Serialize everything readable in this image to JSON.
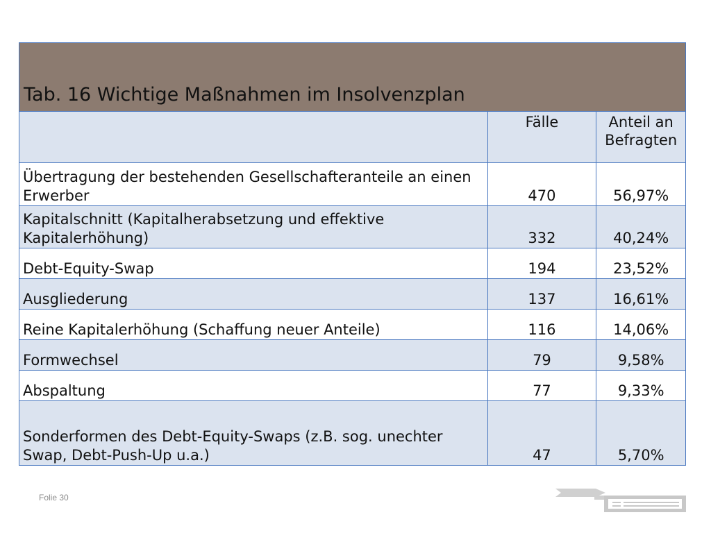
{
  "table": {
    "title": "Tab. 16 Wichtige Maßnahmen im Insolvenzplan",
    "headers": {
      "measure": "",
      "cases": "Fälle",
      "share": "Anteil an Befragten"
    },
    "rows": [
      {
        "measure": "Übertragung der bestehenden Gesellschafteranteile an einen Erwerber",
        "cases": "470",
        "share": "56,97%"
      },
      {
        "measure": "Kapitalschnitt (Kapitalherabsetzung und effektive Kapitalerhöhung)",
        "cases": "332",
        "share": "40,24%"
      },
      {
        "measure": "Debt-Equity-Swap",
        "cases": "194",
        "share": "23,52%"
      },
      {
        "measure": "Ausgliederung",
        "cases": "137",
        "share": "16,61%"
      },
      {
        "measure": "Reine Kapitalerhöhung (Schaffung neuer Anteile)",
        "cases": "116",
        "share": "14,06%"
      },
      {
        "measure": "Formwechsel",
        "cases": "79",
        "share": "9,58%"
      },
      {
        "measure": "Abspaltung",
        "cases": "77",
        "share": "9,33%"
      },
      {
        "measure": "Sonderformen des Debt-Equity-Swaps (z.B. sog. unechter Swap, Debt-Push-Up u.a.)",
        "cases": "47",
        "share": "5,70%"
      }
    ]
  },
  "footer": {
    "slide_label": "Folie 30"
  },
  "colors": {
    "title_background": "#8c7b70",
    "band_light_blue": "#dbe3ef",
    "grid_border": "#4a78c0",
    "logo_gray": "#c8c8c8"
  },
  "icons": {
    "logo": "slide-logo-icon"
  }
}
